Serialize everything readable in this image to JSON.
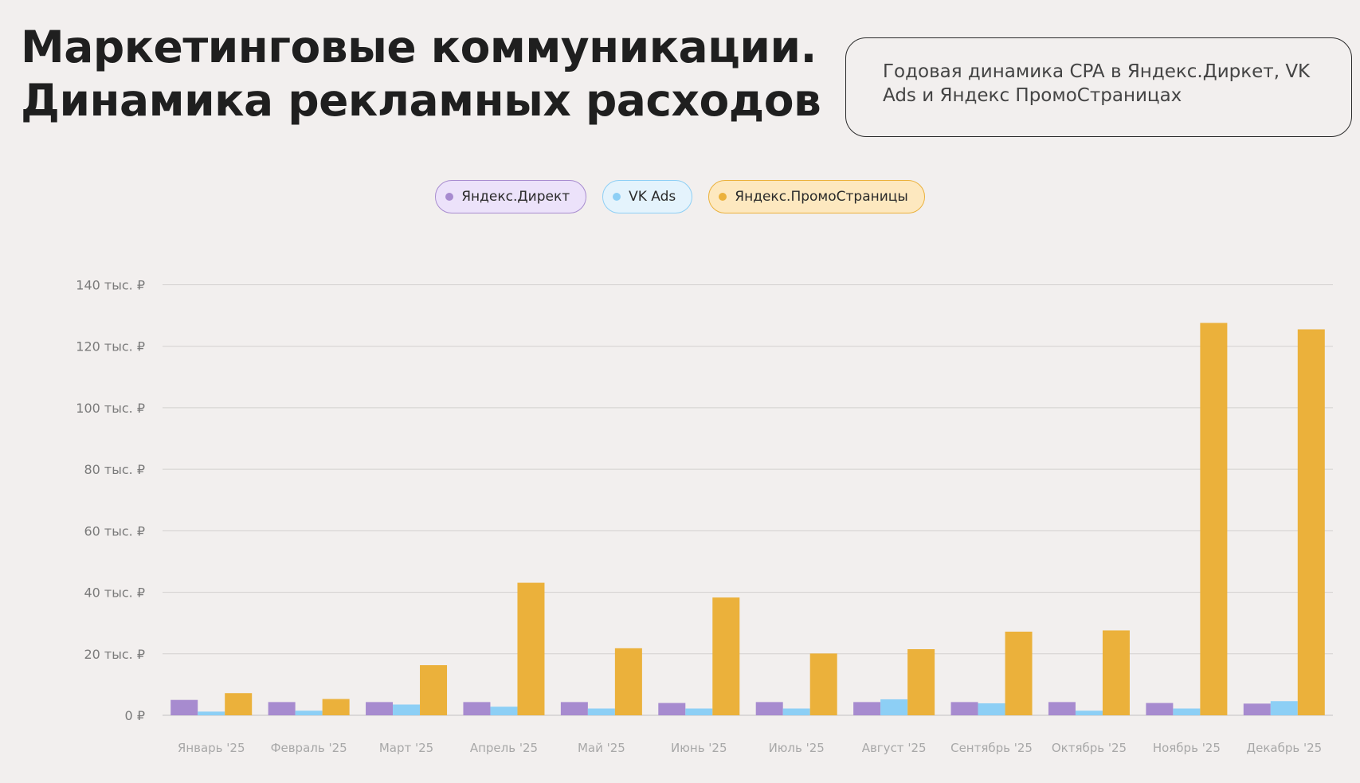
{
  "header": {
    "title_line1": "Маркетинговые коммуникации.",
    "title_line2": "Динамика рекламных расходов",
    "description": "Годовая динамика CPA в Яндекс.Диркет, VK Ads и Яндекс ПромоСтраницах"
  },
  "legend": [
    {
      "label": "Яндекс.Директ",
      "color": "#a78bcf",
      "bg": "#ece2fa",
      "border": "#a78bcf"
    },
    {
      "label": "VK Ads",
      "color": "#8dcff5",
      "bg": "#e4f3fc",
      "border": "#8dcff5"
    },
    {
      "label": "Яндекс.ПромоСтраницы",
      "color": "#ebb13b",
      "bg": "#fde8bf",
      "border": "#ebb13b"
    }
  ],
  "chart_data": {
    "type": "bar",
    "title": "",
    "xlabel": "",
    "ylabel": "",
    "ylim": [
      0,
      140
    ],
    "yticks": [
      0,
      20,
      40,
      60,
      80,
      100,
      120,
      140
    ],
    "ytick_labels": [
      "0 ₽",
      "20 тыс. ₽",
      "40 тыс. ₽",
      "60 тыс. ₽",
      "80 тыс. ₽",
      "100 тыс. ₽",
      "120 тыс. ₽",
      "140 тыс. ₽"
    ],
    "grid": true,
    "legend_position": "top-center",
    "categories": [
      "Январь '25",
      "Февраль '25",
      "Март '25",
      "Апрель '25",
      "Май '25",
      "Июнь '25",
      "Июль '25",
      "Август '25",
      "Сентябрь '25",
      "Октябрь '25",
      "Ноябрь '25",
      "Декабрь '25"
    ],
    "series": [
      {
        "name": "Яндекс.Директ",
        "color": "#a78bcf",
        "values": [
          5,
          4.3,
          4.3,
          4.3,
          4.3,
          4,
          4.3,
          4.3,
          4.3,
          4.3,
          4,
          3.8
        ]
      },
      {
        "name": "VK Ads",
        "color": "#8dcff5",
        "values": [
          1.2,
          1.5,
          3.5,
          2.8,
          2.2,
          2.2,
          2.2,
          5.2,
          3.9,
          1.5,
          2.2,
          4.6
        ]
      },
      {
        "name": "Яндекс.ПромоСтраницы",
        "color": "#ebb13b",
        "values": [
          7.2,
          5.3,
          16.3,
          43.1,
          21.8,
          38.3,
          20.1,
          21.5,
          27.2,
          27.6,
          127.6,
          125.5
        ]
      }
    ]
  }
}
